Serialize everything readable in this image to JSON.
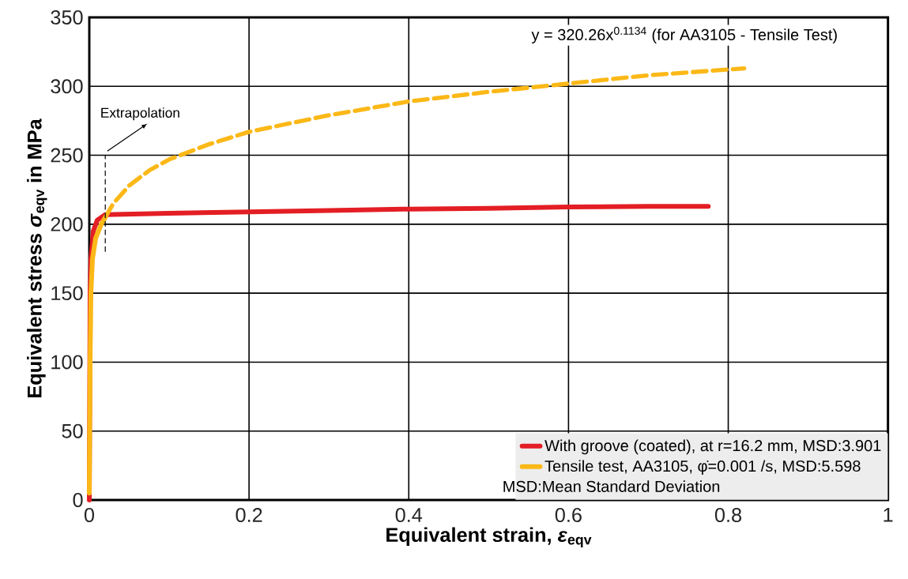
{
  "chart_data": {
    "type": "line",
    "xlabel": "Equivalent strain, *ε*$_{eqv}$",
    "ylabel": "Equivalent stress *σ*$_{eqv}$ in MPa",
    "annotations": [
      "y = 320.26x$^{0.1134}$ (for AA3105 - Tensile Test)",
      "MSD:Mean Standard Deviation"
    ],
    "series": [
      {
        "name": "With groove (coated), at r=16.2 mm, MSD:3.901",
        "color": "#e31e24",
        "line_style": "solid",
        "x": [
          0,
          0.001,
          0.002,
          0.005,
          0.01,
          0.02,
          0.1,
          0.2,
          0.3,
          0.4,
          0.5,
          0.6,
          0.7,
          0.775
        ],
        "values": [
          0,
          150,
          175,
          195,
          203,
          207,
          208,
          209,
          210,
          211,
          211.5,
          212.5,
          213,
          213
        ]
      },
      {
        "name": "Tensile test, AA3105, φ̇=0.001 /s, MSD:5.598",
        "color": "#fbb817",
        "line_style": "solid",
        "x": [
          0,
          0.001,
          0.002,
          0.004,
          0.008,
          0.015,
          0.02
        ],
        "values": [
          5,
          100,
          150,
          175,
          190,
          200,
          205
        ]
      },
      {
        "color": "#fbb817",
        "line_style": "dashed",
        "x": [
          0.02,
          0.03,
          0.05,
          0.075,
          0.1,
          0.15,
          0.2,
          0.3,
          0.4,
          0.5,
          0.6,
          0.7,
          0.82
        ],
        "values": [
          205,
          215,
          228,
          239,
          247,
          258,
          267,
          279,
          289,
          296,
          302,
          308,
          313
        ]
      }
    ],
    "xlim": [
      0,
      1
    ],
    "ylim": [
      0,
      350
    ],
    "xticks": [
      0,
      0.2,
      0.4,
      0.6,
      0.8,
      1
    ],
    "yticks": [
      0,
      50,
      100,
      150,
      200,
      250,
      300,
      350
    ],
    "ref_lines": [
      {
        "axis": "x",
        "value": 0.02,
        "label": "Extrapolation",
        "color": "#000000",
        "line_style": "dashed"
      }
    ],
    "grid": true,
    "legend": "bottom right"
  }
}
